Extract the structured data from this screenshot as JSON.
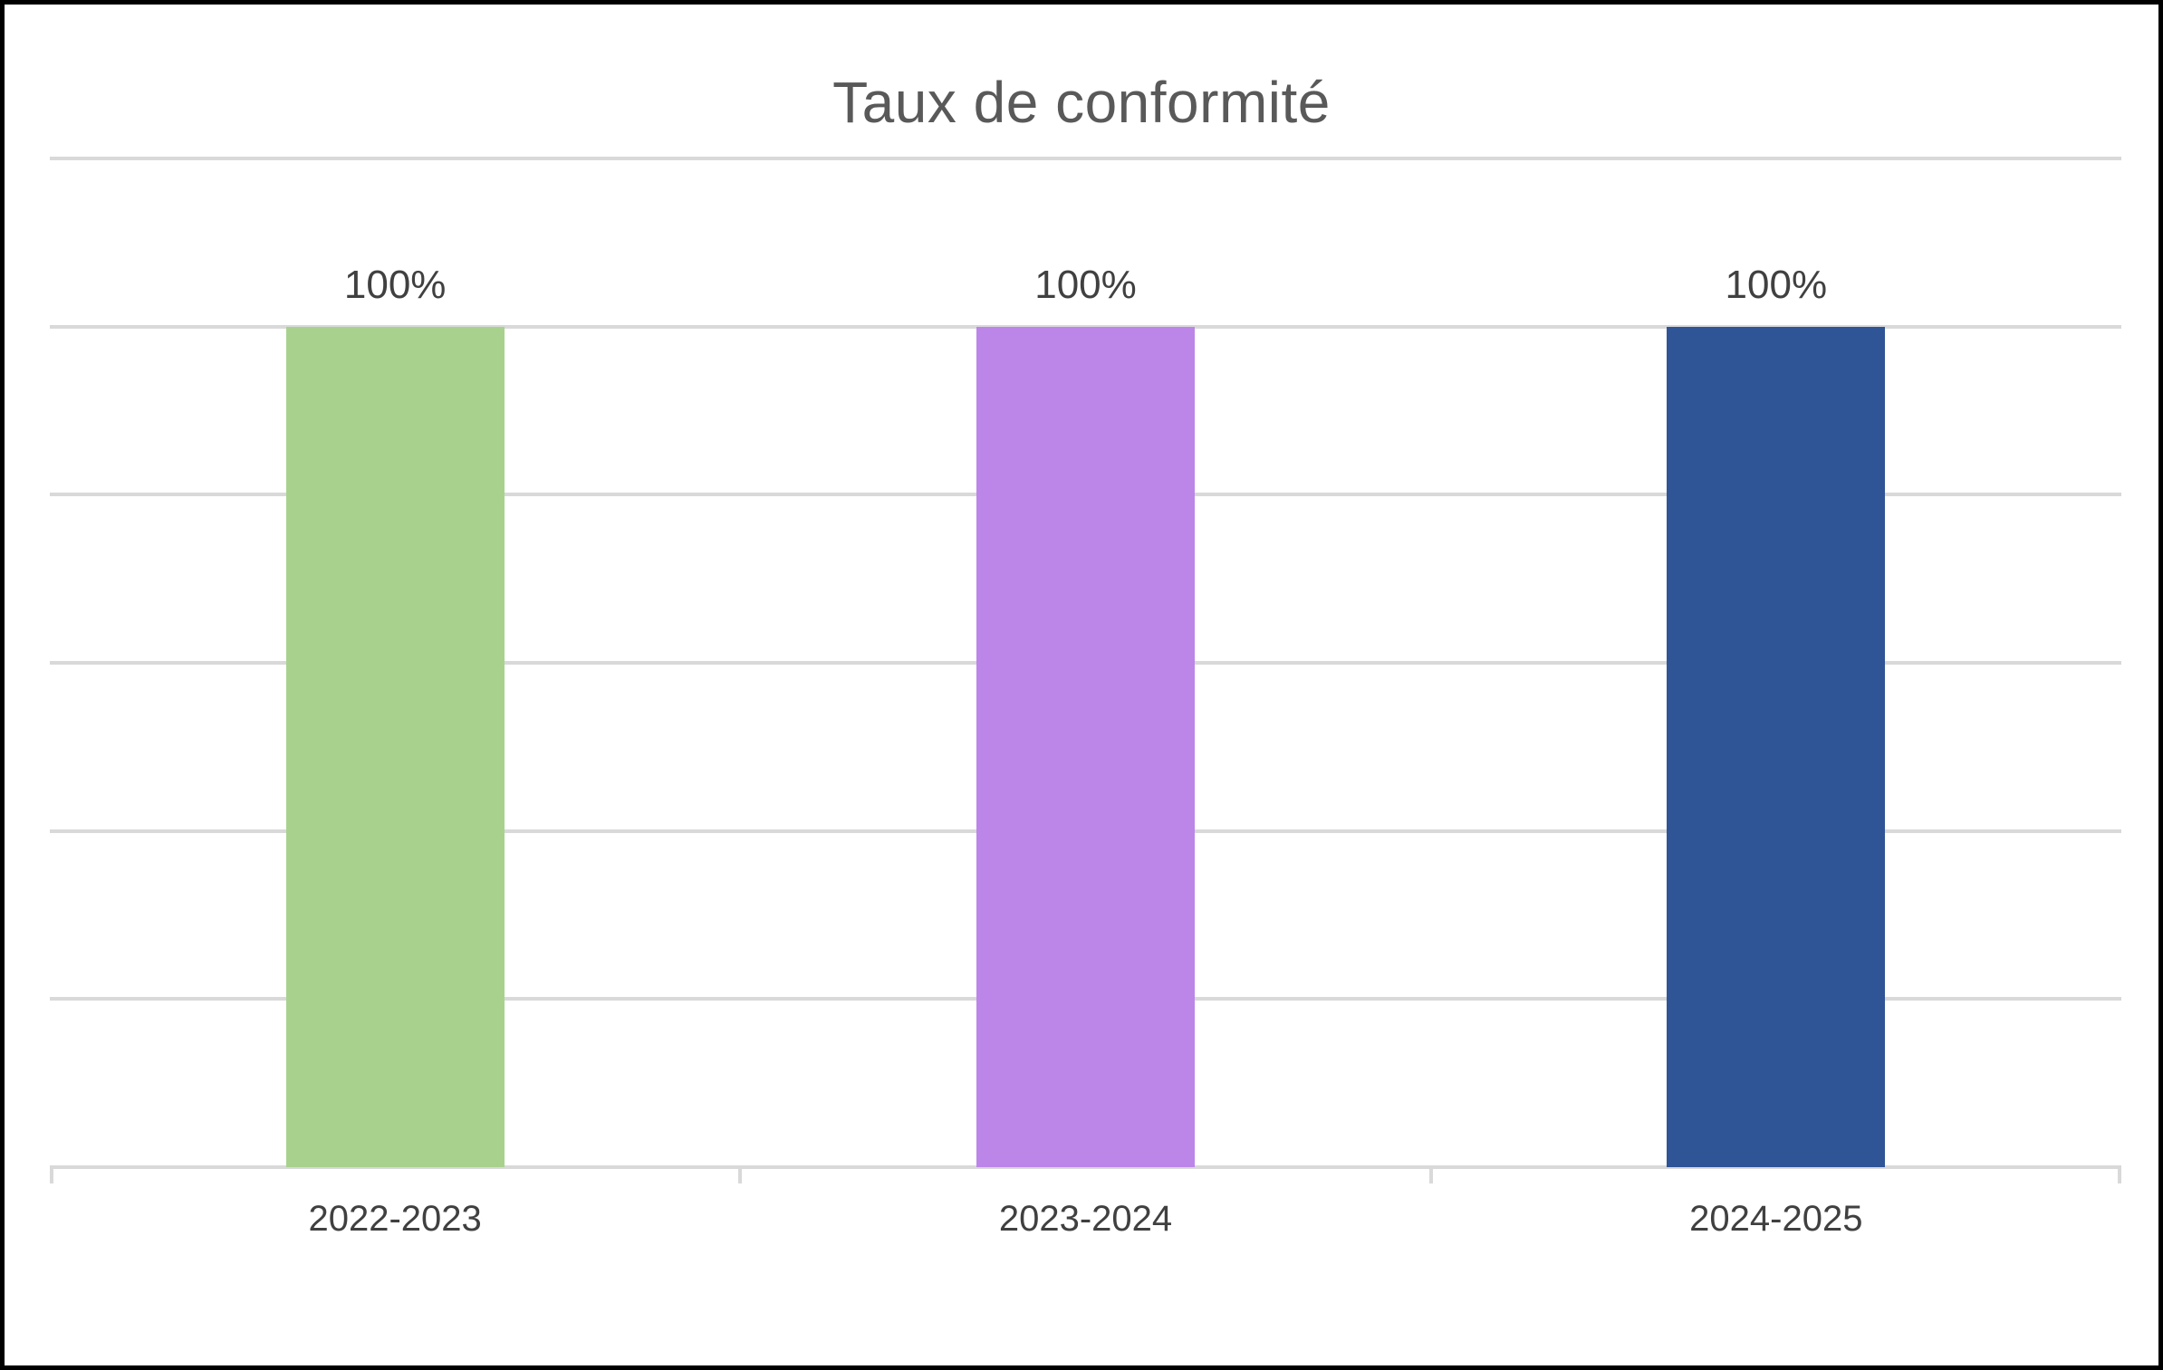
{
  "chart_data": {
    "type": "bar",
    "title": "Taux de conformité",
    "categories": [
      "2022-2023",
      "2023-2024",
      "2024-2025"
    ],
    "values": [
      100,
      100,
      100
    ],
    "value_labels": [
      "100%",
      "100%",
      "100%"
    ],
    "bar_colors": [
      "#A9D18E",
      "#BC86E8",
      "#2F5597"
    ],
    "xlabel": "",
    "ylabel": "",
    "ylim": [
      0,
      120
    ],
    "gridlines_pct": [
      0,
      20,
      40,
      60,
      80,
      100,
      120
    ],
    "grid": true,
    "legend_position": "none"
  },
  "colors": {
    "grid": "#D9D9D9",
    "title_text": "#595959",
    "label_text": "#404040",
    "frame_border": "#000000",
    "background": "#FFFFFF"
  }
}
